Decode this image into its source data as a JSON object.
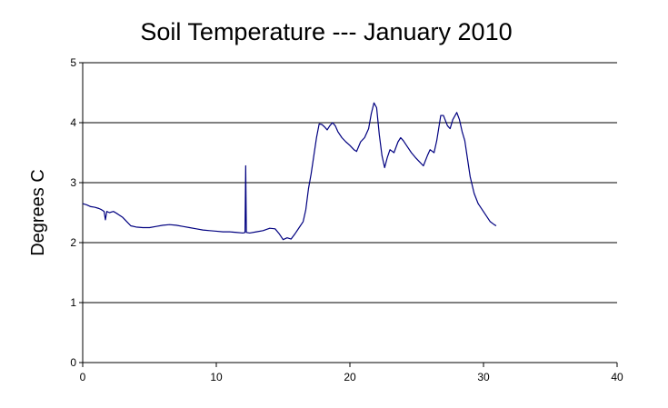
{
  "chart_data": {
    "type": "line",
    "title": "Soil Temperature --- January 2010",
    "xlabel": "",
    "ylabel": "Degrees C",
    "xlim": [
      0,
      40
    ],
    "ylim": [
      0,
      5
    ],
    "x_ticks": [
      0,
      10,
      20,
      30,
      40
    ],
    "y_ticks": [
      0,
      1,
      2,
      3,
      4,
      5
    ],
    "grid": "horizontal",
    "legend": "none",
    "series": [
      {
        "color": "#000080",
        "points": [
          [
            0.0,
            2.65
          ],
          [
            0.3,
            2.63
          ],
          [
            0.6,
            2.6
          ],
          [
            0.9,
            2.59
          ],
          [
            1.2,
            2.57
          ],
          [
            1.4,
            2.55
          ],
          [
            1.6,
            2.52
          ],
          [
            1.7,
            2.38
          ],
          [
            1.8,
            2.52
          ],
          [
            2.0,
            2.5
          ],
          [
            2.3,
            2.52
          ],
          [
            2.6,
            2.48
          ],
          [
            3.0,
            2.42
          ],
          [
            3.3,
            2.35
          ],
          [
            3.6,
            2.28
          ],
          [
            4.0,
            2.26
          ],
          [
            4.5,
            2.25
          ],
          [
            5.0,
            2.25
          ],
          [
            5.5,
            2.27
          ],
          [
            6.0,
            2.29
          ],
          [
            6.5,
            2.3
          ],
          [
            7.0,
            2.29
          ],
          [
            7.5,
            2.27
          ],
          [
            8.0,
            2.25
          ],
          [
            8.5,
            2.23
          ],
          [
            9.0,
            2.21
          ],
          [
            9.5,
            2.2
          ],
          [
            10.0,
            2.19
          ],
          [
            10.5,
            2.18
          ],
          [
            11.0,
            2.18
          ],
          [
            11.5,
            2.17
          ],
          [
            12.0,
            2.16
          ],
          [
            12.15,
            2.17
          ],
          [
            12.2,
            3.28
          ],
          [
            12.25,
            2.17
          ],
          [
            12.5,
            2.16
          ],
          [
            13.0,
            2.18
          ],
          [
            13.5,
            2.2
          ],
          [
            14.0,
            2.24
          ],
          [
            14.4,
            2.23
          ],
          [
            14.7,
            2.15
          ],
          [
            15.0,
            2.05
          ],
          [
            15.3,
            2.08
          ],
          [
            15.6,
            2.06
          ],
          [
            15.9,
            2.15
          ],
          [
            16.2,
            2.25
          ],
          [
            16.5,
            2.35
          ],
          [
            16.7,
            2.55
          ],
          [
            16.9,
            2.9
          ],
          [
            17.1,
            3.15
          ],
          [
            17.3,
            3.45
          ],
          [
            17.5,
            3.75
          ],
          [
            17.7,
            3.98
          ],
          [
            17.9,
            3.97
          ],
          [
            18.1,
            3.93
          ],
          [
            18.3,
            3.88
          ],
          [
            18.5,
            3.95
          ],
          [
            18.7,
            4.0
          ],
          [
            18.9,
            3.95
          ],
          [
            19.1,
            3.85
          ],
          [
            19.4,
            3.75
          ],
          [
            19.7,
            3.68
          ],
          [
            20.0,
            3.62
          ],
          [
            20.3,
            3.55
          ],
          [
            20.5,
            3.52
          ],
          [
            20.8,
            3.68
          ],
          [
            21.1,
            3.75
          ],
          [
            21.4,
            3.9
          ],
          [
            21.6,
            4.15
          ],
          [
            21.8,
            4.33
          ],
          [
            22.0,
            4.25
          ],
          [
            22.2,
            3.8
          ],
          [
            22.4,
            3.45
          ],
          [
            22.6,
            3.25
          ],
          [
            22.8,
            3.42
          ],
          [
            23.0,
            3.55
          ],
          [
            23.3,
            3.5
          ],
          [
            23.6,
            3.68
          ],
          [
            23.8,
            3.75
          ],
          [
            24.0,
            3.7
          ],
          [
            24.3,
            3.6
          ],
          [
            24.6,
            3.5
          ],
          [
            24.9,
            3.42
          ],
          [
            25.2,
            3.35
          ],
          [
            25.5,
            3.28
          ],
          [
            25.8,
            3.45
          ],
          [
            26.0,
            3.55
          ],
          [
            26.3,
            3.5
          ],
          [
            26.5,
            3.7
          ],
          [
            26.8,
            4.12
          ],
          [
            27.0,
            4.12
          ],
          [
            27.3,
            3.95
          ],
          [
            27.5,
            3.9
          ],
          [
            27.7,
            4.05
          ],
          [
            28.0,
            4.17
          ],
          [
            28.2,
            4.05
          ],
          [
            28.4,
            3.85
          ],
          [
            28.6,
            3.7
          ],
          [
            28.8,
            3.4
          ],
          [
            29.0,
            3.1
          ],
          [
            29.3,
            2.82
          ],
          [
            29.6,
            2.65
          ],
          [
            29.9,
            2.55
          ],
          [
            30.2,
            2.45
          ],
          [
            30.5,
            2.35
          ],
          [
            30.8,
            2.3
          ],
          [
            30.95,
            2.28
          ]
        ]
      }
    ]
  }
}
